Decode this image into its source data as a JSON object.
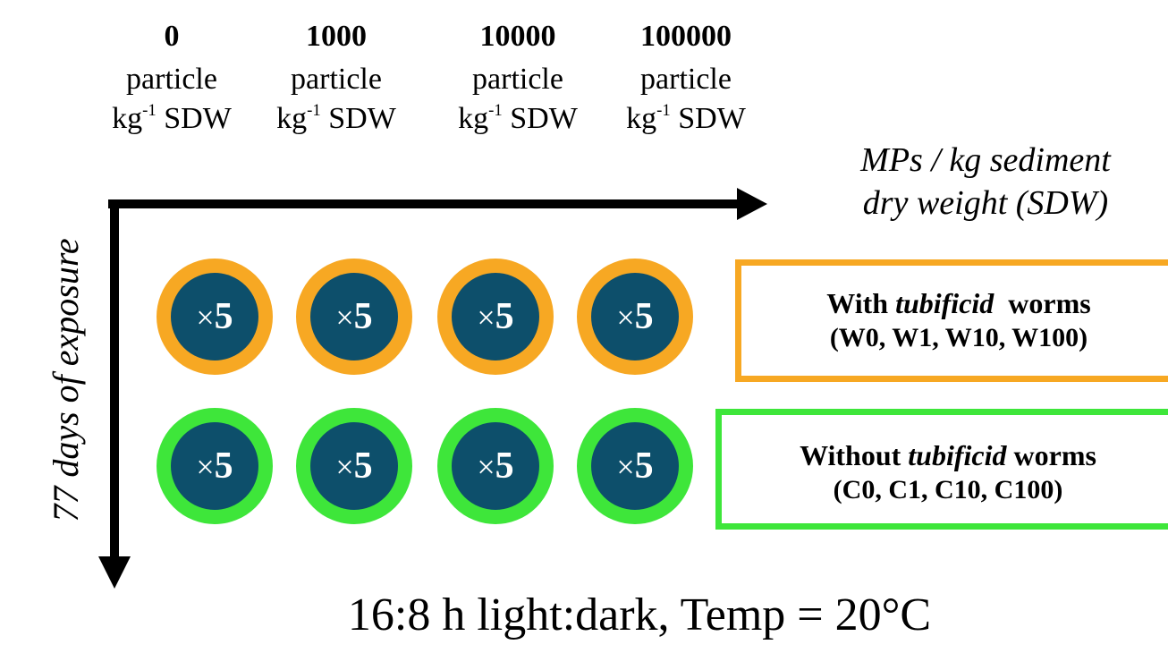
{
  "columns": [
    {
      "number": "0",
      "line1": "particle",
      "line2_prefix": "kg",
      "line2_sup": "-1",
      "line2_suffix": "SDW"
    },
    {
      "number": "1000",
      "line1": "particle",
      "line2_prefix": "kg",
      "line2_sup": "-1",
      "line2_suffix": "SDW"
    },
    {
      "number": "10000",
      "line1": "particle",
      "line2_prefix": "kg",
      "line2_sup": "-1",
      "line2_suffix": "SDW"
    },
    {
      "number": "100000",
      "line1": "particle",
      "line2_prefix": "kg",
      "line2_sup": "-1",
      "line2_suffix": "SDW"
    }
  ],
  "x_axis_label": {
    "line1": "MPs / kg sediment",
    "line2": "dry weight (SDW)"
  },
  "y_axis_label": "77 days of exposure",
  "replicate_label": {
    "prefix": "×",
    "count": "5"
  },
  "rows": [
    {
      "ring_color": "#f7a823",
      "legend_prefix": "With ",
      "legend_italic": "tubificid",
      "legend_suffix": "  worms",
      "codes": "(W0, W1, W10, W100)"
    },
    {
      "ring_color": "#3ee63a",
      "legend_prefix": "Without ",
      "legend_italic": "tubificid",
      "legend_suffix": " worms",
      "codes": "(C0, C1, C10, C100)"
    }
  ],
  "colors": {
    "dish_fill": "#0d4f6b",
    "axis": "#000000"
  },
  "footer": "16:8 h light:dark, Temp = 20°C"
}
